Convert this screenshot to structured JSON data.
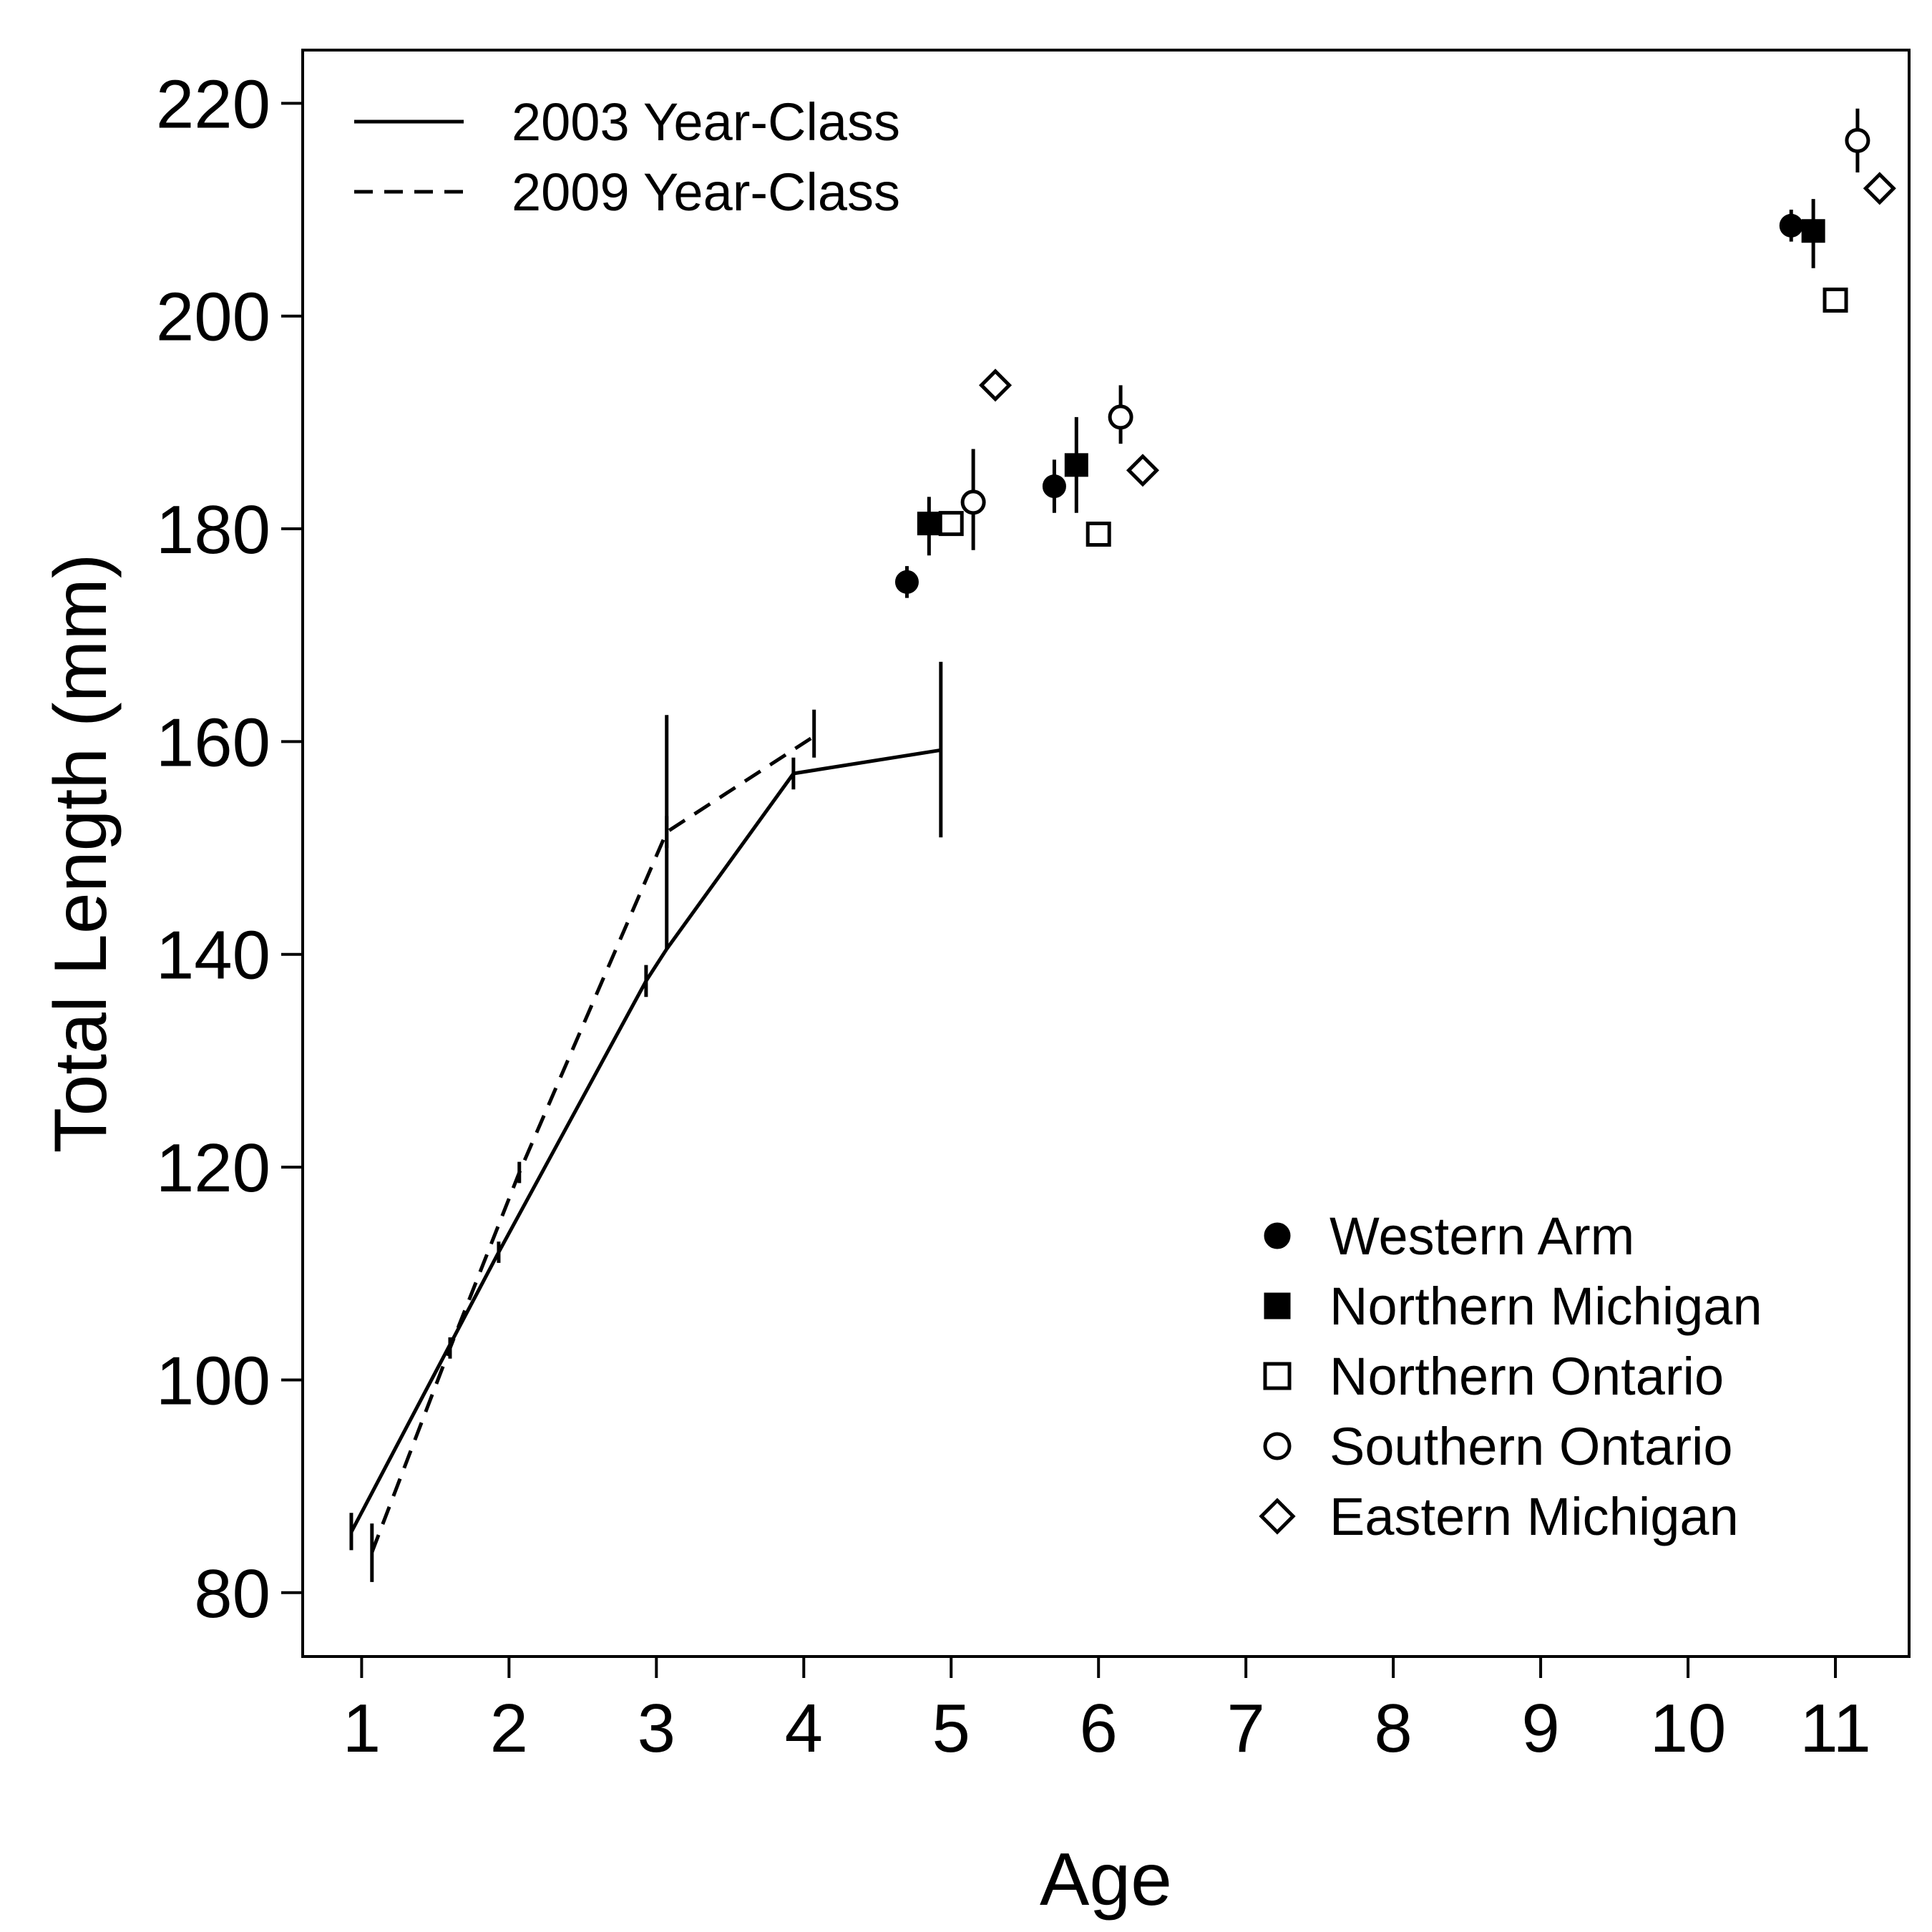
{
  "chart_data": {
    "type": "line",
    "title": "",
    "xlabel": "Age",
    "ylabel": "Total Length (mm)",
    "xlim": [
      0.6,
      11.5
    ],
    "ylim": [
      74,
      225
    ],
    "x_ticks": [
      "1",
      "2",
      "3",
      "4",
      "5",
      "6",
      "7",
      "8",
      "9",
      "10",
      "11"
    ],
    "y_ticks": [
      "80",
      "100",
      "120",
      "140",
      "160",
      "180",
      "200",
      "220"
    ],
    "grid": false,
    "legend_lines_position": "top-left",
    "legend_points_position": "bottom-right",
    "series": [
      {
        "name": "2003 Year-Class",
        "style": "solid",
        "points": [
          {
            "x": 0.93,
            "y": 85.7,
            "lo": 84.0,
            "hi": 87.5
          },
          {
            "x": 1.93,
            "y": 112.0,
            "lo": 111.0,
            "hi": 113.0
          },
          {
            "x": 2.93,
            "y": 137.5,
            "lo": 136.0,
            "hi": 139.0
          },
          {
            "x": 3.07,
            "y": 140.5,
            "lo": 140.5,
            "hi": 162.5
          },
          {
            "x": 3.93,
            "y": 157.0,
            "lo": 155.5,
            "hi": 158.5
          },
          {
            "x": 4.93,
            "y": 159.2,
            "lo": 151.0,
            "hi": 167.5
          }
        ]
      },
      {
        "name": "2009 Year-Class",
        "style": "dashed",
        "points": [
          {
            "x": 1.07,
            "y": 83.8,
            "lo": 81.0,
            "hi": 86.5
          },
          {
            "x": 1.6,
            "y": 103.0,
            "lo": 102.0,
            "hi": 104.0
          },
          {
            "x": 2.07,
            "y": 119.5,
            "lo": 118.5,
            "hi": 120.5
          },
          {
            "x": 3.07,
            "y": 151.5,
            "lo": 150.0,
            "hi": 153.0
          },
          {
            "x": 4.07,
            "y": 160.5,
            "lo": 158.5,
            "hi": 163.0
          }
        ]
      }
    ],
    "point_groups": [
      {
        "name": "Western Arm",
        "marker": "filled-circle",
        "points": [
          {
            "x": 4.7,
            "y": 175.0,
            "lo": 173.5,
            "hi": 176.5
          },
          {
            "x": 5.7,
            "y": 184.0,
            "lo": 181.5,
            "hi": 186.5
          },
          {
            "x": 10.7,
            "y": 208.5,
            "lo": 207.0,
            "hi": 210.0
          }
        ]
      },
      {
        "name": "Northern Michigan",
        "marker": "filled-square",
        "points": [
          {
            "x": 4.85,
            "y": 180.5,
            "lo": 177.5,
            "hi": 183.0
          },
          {
            "x": 5.85,
            "y": 186.0,
            "lo": 181.5,
            "hi": 190.5
          },
          {
            "x": 10.85,
            "y": 208.0,
            "lo": 204.5,
            "hi": 211.0
          }
        ]
      },
      {
        "name": "Northern Ontario",
        "marker": "open-square",
        "points": [
          {
            "x": 5.0,
            "y": 180.5,
            "lo": 179.5,
            "hi": 181.5
          },
          {
            "x": 6.0,
            "y": 179.5,
            "lo": 178.5,
            "hi": 180.5
          },
          {
            "x": 11.0,
            "y": 201.5,
            "lo": 200.5,
            "hi": 202.5
          }
        ]
      },
      {
        "name": "Southern Ontario",
        "marker": "open-circle",
        "points": [
          {
            "x": 5.15,
            "y": 182.5,
            "lo": 178.0,
            "hi": 187.5
          },
          {
            "x": 6.15,
            "y": 190.5,
            "lo": 188.0,
            "hi": 193.5
          },
          {
            "x": 11.15,
            "y": 216.5,
            "lo": 213.5,
            "hi": 219.5
          }
        ]
      },
      {
        "name": "Eastern Michigan",
        "marker": "open-diamond",
        "points": [
          {
            "x": 5.3,
            "y": 193.5,
            "lo": 192.5,
            "hi": 194.5
          },
          {
            "x": 6.3,
            "y": 185.5,
            "lo": 184.5,
            "hi": 186.5
          },
          {
            "x": 11.3,
            "y": 212.0,
            "lo": 211.0,
            "hi": 213.0
          }
        ]
      }
    ]
  }
}
